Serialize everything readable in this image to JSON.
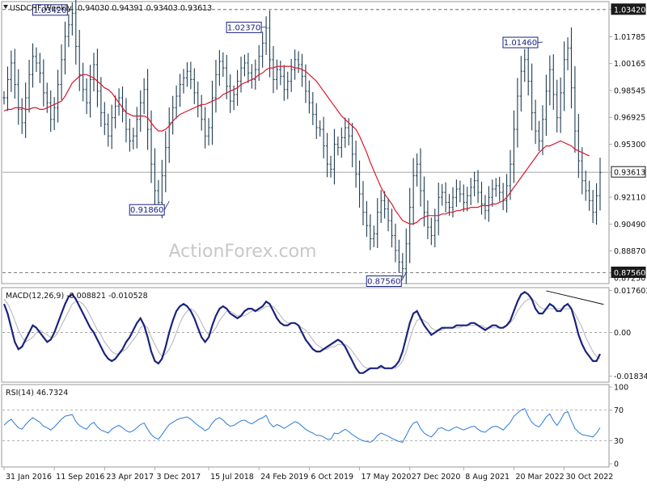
{
  "chart_data": {
    "type": "line",
    "price_panel": {
      "symbol": "USDCHF,Weekly",
      "ohlc_text": "0.94030 0.94391 0.93403 0.93613",
      "watermark": "ActionForex.com",
      "ylim": [
        0.8695,
        1.0385
      ],
      "y_ticks": [
        "1.03420",
        "1.01785",
        "1.00165",
        "0.98545",
        "0.96925",
        "0.95300",
        "0.93613",
        "0.92110",
        "0.90490",
        "0.88870",
        "0.87560",
        "0.87250"
      ],
      "y_tick_values": [
        1.0342,
        1.01785,
        1.00165,
        0.98545,
        0.96925,
        0.953,
        0.93613,
        0.9211,
        0.9049,
        0.8887,
        0.8756,
        0.8725
      ],
      "highlight_labels": {
        "high": "1.03420",
        "current": "0.93613",
        "low": "0.87560"
      },
      "ref_lines": [
        {
          "value": 1.0342,
          "style": "dashed"
        },
        {
          "value": 0.93613,
          "style": "solid"
        },
        {
          "value": 0.8756,
          "style": "dashed"
        }
      ],
      "annotations": [
        {
          "label": "1.03420",
          "x": 19,
          "y": 1.0342
        },
        {
          "label": "1.02370",
          "x": 73,
          "y": 1.0237
        },
        {
          "label": "0.91860",
          "x": 46,
          "y": 0.9186
        },
        {
          "label": "0.87560",
          "x": 112,
          "y": 0.8756
        },
        {
          "label": "1.01460",
          "x": 150,
          "y": 1.0146
        }
      ],
      "series": [
        {
          "name": "Price",
          "color": "#1f3d52",
          "values": [
            0.981,
            0.992,
            1.002,
            0.989,
            0.974,
            0.966,
            0.981,
            0.995,
            1.006,
            1.002,
            0.996,
            0.984,
            0.978,
            0.968,
            0.975,
            0.989,
            1.004,
            1.018,
            1.025,
            1.032,
            1.012,
            0.995,
            0.986,
            0.978,
            0.992,
            1.001,
            0.985,
            0.972,
            0.965,
            0.958,
            0.969,
            0.976,
            0.981,
            0.973,
            0.962,
            0.955,
            0.958,
            0.968,
            0.978,
            0.986,
            0.962,
            0.941,
            0.925,
            0.918,
            0.934,
            0.951,
            0.966,
            0.975,
            0.982,
            0.989,
            0.993,
            0.997,
            0.992,
            0.984,
            0.976,
            0.968,
            0.958,
            0.963,
            0.981,
            0.995,
            1.003,
            0.999,
            0.988,
            0.979,
            0.983,
            0.991,
            0.999,
            1.002,
            0.996,
            0.992,
            0.998,
            1.006,
            1.014,
            1.023,
            1.004,
            0.992,
            0.998,
            0.994,
            0.986,
            0.991,
            0.998,
            1.004,
            1.001,
            0.994,
            0.985,
            0.978,
            0.971,
            0.963,
            0.962,
            0.952,
            0.941,
            0.938,
            0.953,
            0.951,
            0.957,
            0.963,
            0.958,
            0.947,
            0.935,
            0.923,
            0.912,
            0.904,
            0.896,
            0.899,
            0.912,
            0.919,
            0.914,
            0.907,
            0.898,
            0.889,
            0.882,
            0.878,
            0.893,
            0.915,
            0.934,
            0.941,
            0.925,
            0.912,
            0.903,
            0.898,
            0.907,
            0.921,
            0.924,
            0.918,
            0.915,
            0.921,
            0.926,
            0.923,
            0.918,
            0.922,
            0.927,
            0.931,
            0.924,
            0.917,
            0.913,
            0.921,
            0.926,
            0.928,
            0.924,
            0.919,
            0.928,
            0.941,
            0.962,
            0.982,
            0.997,
            1.004,
            0.991,
            0.972,
            0.961,
            0.955,
            0.968,
            0.985,
            0.998,
            0.983,
            0.969,
            0.984,
            1.004,
            1.011,
            0.987,
            0.961,
            0.943,
            0.931,
            0.925,
            0.919,
            0.912,
            0.922,
            0.936
          ]
        },
        {
          "name": "MA",
          "color": "#d9182d",
          "values": [
            0.973,
            0.974,
            0.974,
            0.975,
            0.975,
            0.975,
            0.974,
            0.974,
            0.975,
            0.975,
            0.974,
            0.974,
            0.975,
            0.976,
            0.977,
            0.978,
            0.979,
            0.982,
            0.986,
            0.99,
            0.992,
            0.994,
            0.995,
            0.995,
            0.994,
            0.993,
            0.991,
            0.989,
            0.987,
            0.986,
            0.984,
            0.981,
            0.978,
            0.975,
            0.972,
            0.971,
            0.97,
            0.97,
            0.97,
            0.97,
            0.969,
            0.966,
            0.963,
            0.961,
            0.961,
            0.962,
            0.964,
            0.967,
            0.969,
            0.971,
            0.972,
            0.973,
            0.974,
            0.975,
            0.976,
            0.977,
            0.977,
            0.978,
            0.979,
            0.98,
            0.981,
            0.983,
            0.984,
            0.985,
            0.986,
            0.987,
            0.989,
            0.99,
            0.991,
            0.992,
            0.993,
            0.995,
            0.996,
            0.998,
            0.999,
            0.999,
            1.0,
            1.0,
            1.0,
            1.0,
            1.0,
            0.999,
            0.999,
            0.998,
            0.997,
            0.995,
            0.993,
            0.991,
            0.988,
            0.985,
            0.982,
            0.979,
            0.976,
            0.973,
            0.97,
            0.968,
            0.966,
            0.964,
            0.962,
            0.958,
            0.953,
            0.948,
            0.942,
            0.937,
            0.932,
            0.927,
            0.923,
            0.92,
            0.917,
            0.913,
            0.91,
            0.907,
            0.906,
            0.905,
            0.905,
            0.906,
            0.908,
            0.909,
            0.91,
            0.91,
            0.91,
            0.91,
            0.911,
            0.911,
            0.912,
            0.912,
            0.913,
            0.913,
            0.914,
            0.914,
            0.915,
            0.915,
            0.915,
            0.916,
            0.916,
            0.916,
            0.917,
            0.917,
            0.918,
            0.919,
            0.921,
            0.924,
            0.927,
            0.93,
            0.933,
            0.936,
            0.939,
            0.942,
            0.945,
            0.948,
            0.95,
            0.952,
            0.952,
            0.953,
            0.954,
            0.955,
            0.954,
            0.953,
            0.952,
            0.95,
            0.949,
            0.948,
            0.947,
            0.946
          ]
        }
      ]
    },
    "macd_panel": {
      "label": "MACD(12,26,9) -0.008821 -0.010528",
      "ylim": [
        -0.0205,
        0.0185
      ],
      "y_ticks": [
        "0.017603",
        "0.00",
        "-0.01834"
      ],
      "y_tick_values": [
        0.017603,
        0.0,
        -0.01834
      ],
      "series": [
        {
          "name": "MACD",
          "color": "#1a237e",
          "values": [
            0.012,
            0.008,
            0.002,
            -0.004,
            -0.007,
            -0.006,
            -0.003,
            0.0,
            0.003,
            0.002,
            0.0,
            -0.002,
            -0.004,
            -0.003,
            0.0,
            0.004,
            0.008,
            0.012,
            0.015,
            0.016,
            0.014,
            0.011,
            0.008,
            0.005,
            0.002,
            0.0,
            -0.003,
            -0.006,
            -0.009,
            -0.011,
            -0.012,
            -0.011,
            -0.009,
            -0.007,
            -0.004,
            -0.002,
            0.001,
            0.004,
            0.006,
            0.003,
            -0.002,
            -0.008,
            -0.012,
            -0.013,
            -0.011,
            -0.006,
            0.0,
            0.005,
            0.009,
            0.011,
            0.012,
            0.011,
            0.009,
            0.006,
            0.002,
            -0.002,
            -0.004,
            -0.002,
            0.003,
            0.007,
            0.01,
            0.011,
            0.01,
            0.008,
            0.007,
            0.006,
            0.007,
            0.009,
            0.01,
            0.01,
            0.009,
            0.01,
            0.011,
            0.013,
            0.012,
            0.009,
            0.006,
            0.004,
            0.003,
            0.003,
            0.004,
            0.004,
            0.003,
            0.0,
            -0.003,
            -0.005,
            -0.007,
            -0.008,
            -0.008,
            -0.007,
            -0.006,
            -0.005,
            -0.004,
            -0.003,
            -0.004,
            -0.006,
            -0.009,
            -0.012,
            -0.015,
            -0.017,
            -0.017,
            -0.016,
            -0.015,
            -0.015,
            -0.015,
            -0.014,
            -0.015,
            -0.015,
            -0.015,
            -0.014,
            -0.012,
            -0.008,
            -0.002,
            0.004,
            0.008,
            0.009,
            0.006,
            0.003,
            0.001,
            -0.001,
            0.0,
            0.001,
            0.002,
            0.002,
            0.002,
            0.002,
            0.003,
            0.003,
            0.003,
            0.003,
            0.004,
            0.004,
            0.003,
            0.002,
            0.001,
            0.002,
            0.003,
            0.003,
            0.002,
            0.002,
            0.003,
            0.005,
            0.009,
            0.013,
            0.016,
            0.017,
            0.016,
            0.014,
            0.01,
            0.008,
            0.008,
            0.01,
            0.012,
            0.011,
            0.009,
            0.009,
            0.011,
            0.012,
            0.01,
            0.005,
            -0.001,
            -0.005,
            -0.008,
            -0.01,
            -0.012,
            -0.012,
            -0.009
          ]
        },
        {
          "name": "Signal",
          "color": "#b3b3b3",
          "values": [
            0.014,
            0.012,
            0.009,
            0.005,
            0.001,
            -0.002,
            -0.004,
            -0.003,
            -0.002,
            0.0,
            0.001,
            0.0,
            -0.001,
            -0.002,
            -0.002,
            0.0,
            0.003,
            0.006,
            0.009,
            0.012,
            0.013,
            0.013,
            0.012,
            0.01,
            0.007,
            0.004,
            0.001,
            -0.001,
            -0.004,
            -0.006,
            -0.008,
            -0.009,
            -0.009,
            -0.008,
            -0.007,
            -0.005,
            -0.003,
            -0.001,
            0.002,
            0.003,
            0.002,
            -0.002,
            -0.005,
            -0.008,
            -0.01,
            -0.009,
            -0.007,
            -0.004,
            0.0,
            0.004,
            0.007,
            0.009,
            0.01,
            0.009,
            0.007,
            0.004,
            0.001,
            -0.001,
            0.0,
            0.002,
            0.005,
            0.007,
            0.009,
            0.009,
            0.008,
            0.007,
            0.007,
            0.007,
            0.008,
            0.009,
            0.009,
            0.009,
            0.01,
            0.011,
            0.011,
            0.011,
            0.009,
            0.007,
            0.005,
            0.004,
            0.004,
            0.004,
            0.003,
            0.002,
            0.001,
            -0.001,
            -0.003,
            -0.005,
            -0.006,
            -0.007,
            -0.007,
            -0.006,
            -0.006,
            -0.005,
            -0.005,
            -0.005,
            -0.006,
            -0.008,
            -0.01,
            -0.012,
            -0.014,
            -0.015,
            -0.015,
            -0.015,
            -0.015,
            -0.015,
            -0.015,
            -0.015,
            -0.015,
            -0.015,
            -0.014,
            -0.012,
            -0.008,
            -0.003,
            0.002,
            0.005,
            0.006,
            0.005,
            0.004,
            0.002,
            0.001,
            0.001,
            0.001,
            0.002,
            0.002,
            0.002,
            0.002,
            0.002,
            0.003,
            0.003,
            0.003,
            0.003,
            0.003,
            0.003,
            0.002,
            0.002,
            0.002,
            0.002,
            0.002,
            0.002,
            0.003,
            0.004,
            0.006,
            0.009,
            0.011,
            0.013,
            0.014,
            0.014,
            0.013,
            0.011,
            0.01,
            0.01,
            0.01,
            0.01,
            0.01,
            0.01,
            0.01,
            0.01,
            0.01,
            0.008,
            0.005,
            0.002,
            -0.002,
            -0.005,
            -0.008,
            -0.01,
            -0.011
          ]
        }
      ],
      "trendline": {
        "from": {
          "x": 151,
          "y": 0.0175
        },
        "to": {
          "x": 167,
          "y": 0.0118
        }
      }
    },
    "rsi_panel": {
      "label": "RSI(14) 46.7324",
      "ylim": [
        0,
        100
      ],
      "y_ticks": [
        "100",
        "70",
        "30",
        "0"
      ],
      "y_tick_values": [
        100,
        70,
        30,
        0
      ],
      "levels": [
        70,
        30
      ],
      "series": [
        {
          "name": "RSI",
          "color": "#2b7bd6",
          "values": [
            50,
            55,
            58,
            52,
            47,
            45,
            51,
            56,
            60,
            57,
            54,
            49,
            47,
            44,
            48,
            53,
            58,
            62,
            63,
            64,
            55,
            50,
            47,
            45,
            51,
            54,
            48,
            44,
            42,
            40,
            45,
            48,
            50,
            47,
            43,
            41,
            43,
            47,
            51,
            53,
            45,
            38,
            34,
            32,
            38,
            45,
            51,
            54,
            57,
            59,
            60,
            61,
            58,
            54,
            50,
            47,
            43,
            46,
            53,
            58,
            60,
            57,
            52,
            49,
            50,
            53,
            56,
            57,
            54,
            52,
            55,
            58,
            60,
            63,
            53,
            48,
            51,
            49,
            46,
            49,
            52,
            55,
            53,
            49,
            45,
            42,
            40,
            37,
            37,
            35,
            32,
            32,
            40,
            39,
            42,
            45,
            42,
            38,
            35,
            32,
            30,
            29,
            28,
            31,
            37,
            40,
            38,
            36,
            33,
            31,
            29,
            28,
            37,
            46,
            53,
            55,
            46,
            40,
            37,
            35,
            40,
            46,
            47,
            44,
            43,
            46,
            48,
            46,
            44,
            46,
            48,
            49,
            45,
            42,
            41,
            45,
            48,
            49,
            47,
            44,
            49,
            54,
            62,
            66,
            70,
            72,
            62,
            54,
            50,
            48,
            54,
            61,
            65,
            56,
            50,
            57,
            66,
            68,
            56,
            46,
            41,
            38,
            37,
            36,
            35,
            40,
            47
          ]
        }
      ]
    },
    "x_axis": {
      "tick_labels": [
        "31 Jan 2016",
        "11 Sep 2016",
        "23 Apr 2017",
        "3 Dec 2017",
        "15 Jul 2018",
        "24 Feb 2019",
        "6 Oct 2019",
        "17 May 2020",
        "27 Dec 2020",
        "8 Aug 2021",
        "20 Mar 2022",
        "30 Oct 2022"
      ],
      "tick_index": [
        0,
        14,
        28,
        42,
        57,
        71,
        85,
        99,
        113,
        128,
        142,
        156
      ]
    }
  }
}
